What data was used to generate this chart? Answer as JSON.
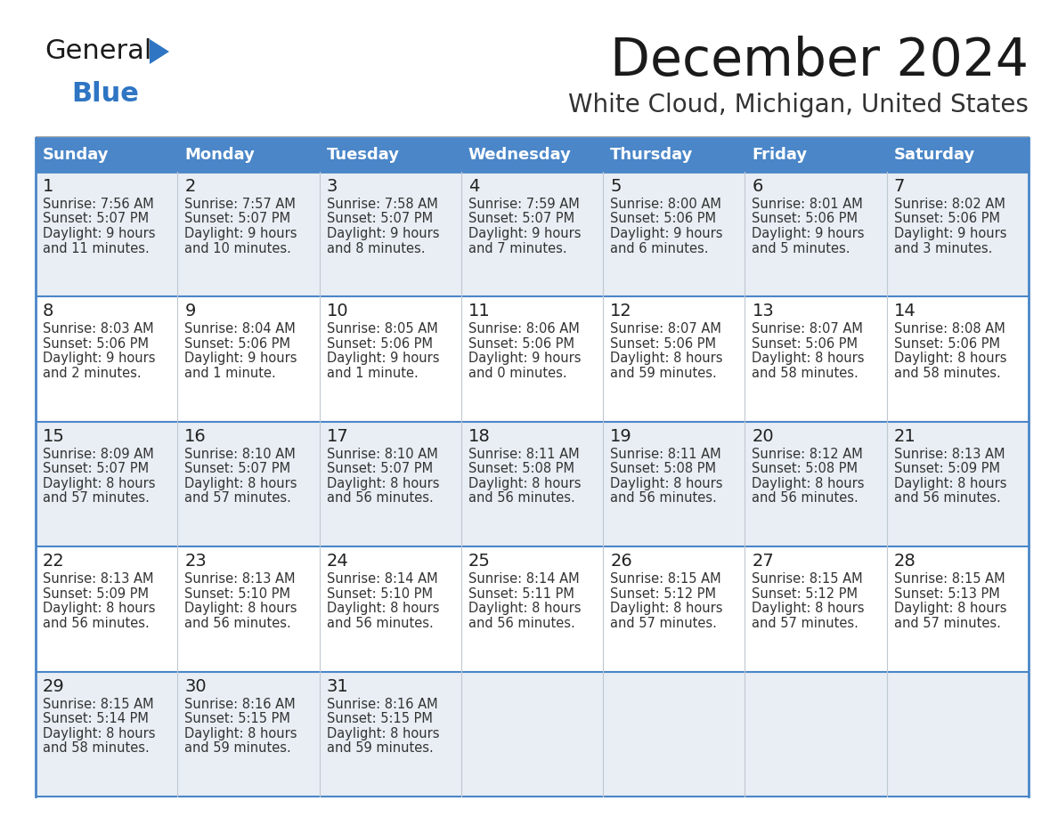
{
  "title": "December 2024",
  "subtitle": "White Cloud, Michigan, United States",
  "header_color": "#4a86c8",
  "header_text_color": "#ffffff",
  "row_colors": [
    "#e8eef4",
    "#ffffff"
  ],
  "border_color": "#4a86c8",
  "text_color": "#333333",
  "day_num_color": "#222222",
  "days_of_week": [
    "Sunday",
    "Monday",
    "Tuesday",
    "Wednesday",
    "Thursday",
    "Friday",
    "Saturday"
  ],
  "weeks": [
    [
      {
        "day": 1,
        "sunrise": "7:56 AM",
        "sunset": "5:07 PM",
        "daylight1": "9 hours",
        "daylight2": "and 11 minutes."
      },
      {
        "day": 2,
        "sunrise": "7:57 AM",
        "sunset": "5:07 PM",
        "daylight1": "9 hours",
        "daylight2": "and 10 minutes."
      },
      {
        "day": 3,
        "sunrise": "7:58 AM",
        "sunset": "5:07 PM",
        "daylight1": "9 hours",
        "daylight2": "and 8 minutes."
      },
      {
        "day": 4,
        "sunrise": "7:59 AM",
        "sunset": "5:07 PM",
        "daylight1": "9 hours",
        "daylight2": "and 7 minutes."
      },
      {
        "day": 5,
        "sunrise": "8:00 AM",
        "sunset": "5:06 PM",
        "daylight1": "9 hours",
        "daylight2": "and 6 minutes."
      },
      {
        "day": 6,
        "sunrise": "8:01 AM",
        "sunset": "5:06 PM",
        "daylight1": "9 hours",
        "daylight2": "and 5 minutes."
      },
      {
        "day": 7,
        "sunrise": "8:02 AM",
        "sunset": "5:06 PM",
        "daylight1": "9 hours",
        "daylight2": "and 3 minutes."
      }
    ],
    [
      {
        "day": 8,
        "sunrise": "8:03 AM",
        "sunset": "5:06 PM",
        "daylight1": "9 hours",
        "daylight2": "and 2 minutes."
      },
      {
        "day": 9,
        "sunrise": "8:04 AM",
        "sunset": "5:06 PM",
        "daylight1": "9 hours",
        "daylight2": "and 1 minute."
      },
      {
        "day": 10,
        "sunrise": "8:05 AM",
        "sunset": "5:06 PM",
        "daylight1": "9 hours",
        "daylight2": "and 1 minute."
      },
      {
        "day": 11,
        "sunrise": "8:06 AM",
        "sunset": "5:06 PM",
        "daylight1": "9 hours",
        "daylight2": "and 0 minutes."
      },
      {
        "day": 12,
        "sunrise": "8:07 AM",
        "sunset": "5:06 PM",
        "daylight1": "8 hours",
        "daylight2": "and 59 minutes."
      },
      {
        "day": 13,
        "sunrise": "8:07 AM",
        "sunset": "5:06 PM",
        "daylight1": "8 hours",
        "daylight2": "and 58 minutes."
      },
      {
        "day": 14,
        "sunrise": "8:08 AM",
        "sunset": "5:06 PM",
        "daylight1": "8 hours",
        "daylight2": "and 58 minutes."
      }
    ],
    [
      {
        "day": 15,
        "sunrise": "8:09 AM",
        "sunset": "5:07 PM",
        "daylight1": "8 hours",
        "daylight2": "and 57 minutes."
      },
      {
        "day": 16,
        "sunrise": "8:10 AM",
        "sunset": "5:07 PM",
        "daylight1": "8 hours",
        "daylight2": "and 57 minutes."
      },
      {
        "day": 17,
        "sunrise": "8:10 AM",
        "sunset": "5:07 PM",
        "daylight1": "8 hours",
        "daylight2": "and 56 minutes."
      },
      {
        "day": 18,
        "sunrise": "8:11 AM",
        "sunset": "5:08 PM",
        "daylight1": "8 hours",
        "daylight2": "and 56 minutes."
      },
      {
        "day": 19,
        "sunrise": "8:11 AM",
        "sunset": "5:08 PM",
        "daylight1": "8 hours",
        "daylight2": "and 56 minutes."
      },
      {
        "day": 20,
        "sunrise": "8:12 AM",
        "sunset": "5:08 PM",
        "daylight1": "8 hours",
        "daylight2": "and 56 minutes."
      },
      {
        "day": 21,
        "sunrise": "8:13 AM",
        "sunset": "5:09 PM",
        "daylight1": "8 hours",
        "daylight2": "and 56 minutes."
      }
    ],
    [
      {
        "day": 22,
        "sunrise": "8:13 AM",
        "sunset": "5:09 PM",
        "daylight1": "8 hours",
        "daylight2": "and 56 minutes."
      },
      {
        "day": 23,
        "sunrise": "8:13 AM",
        "sunset": "5:10 PM",
        "daylight1": "8 hours",
        "daylight2": "and 56 minutes."
      },
      {
        "day": 24,
        "sunrise": "8:14 AM",
        "sunset": "5:10 PM",
        "daylight1": "8 hours",
        "daylight2": "and 56 minutes."
      },
      {
        "day": 25,
        "sunrise": "8:14 AM",
        "sunset": "5:11 PM",
        "daylight1": "8 hours",
        "daylight2": "and 56 minutes."
      },
      {
        "day": 26,
        "sunrise": "8:15 AM",
        "sunset": "5:12 PM",
        "daylight1": "8 hours",
        "daylight2": "and 57 minutes."
      },
      {
        "day": 27,
        "sunrise": "8:15 AM",
        "sunset": "5:12 PM",
        "daylight1": "8 hours",
        "daylight2": "and 57 minutes."
      },
      {
        "day": 28,
        "sunrise": "8:15 AM",
        "sunset": "5:13 PM",
        "daylight1": "8 hours",
        "daylight2": "and 57 minutes."
      }
    ],
    [
      {
        "day": 29,
        "sunrise": "8:15 AM",
        "sunset": "5:14 PM",
        "daylight1": "8 hours",
        "daylight2": "and 58 minutes."
      },
      {
        "day": 30,
        "sunrise": "8:16 AM",
        "sunset": "5:15 PM",
        "daylight1": "8 hours",
        "daylight2": "and 59 minutes."
      },
      {
        "day": 31,
        "sunrise": "8:16 AM",
        "sunset": "5:15 PM",
        "daylight1": "8 hours",
        "daylight2": "and 59 minutes."
      },
      null,
      null,
      null,
      null
    ]
  ],
  "logo_color_general": "#1a1a1a",
  "logo_color_blue": "#2e75c3",
  "logo_triangle_color": "#2e75c3"
}
